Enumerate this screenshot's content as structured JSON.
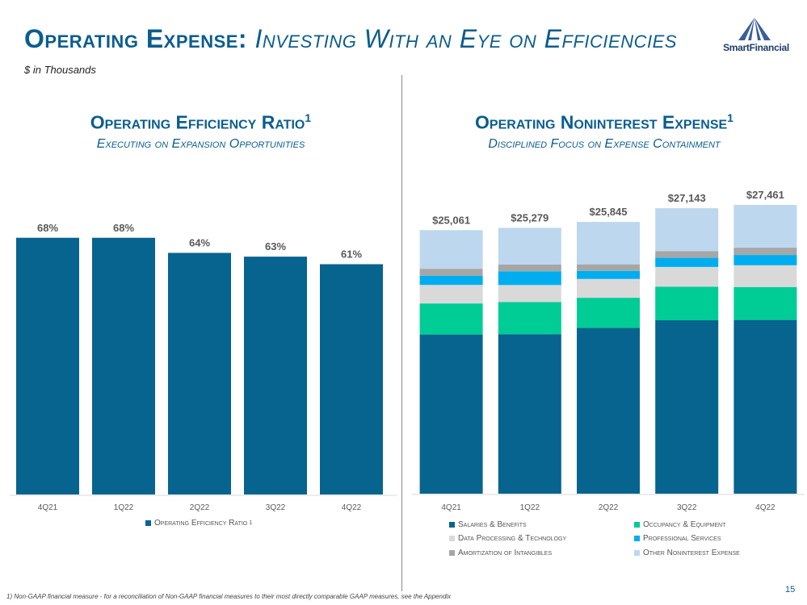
{
  "header": {
    "title_main": "Operating Expense:",
    "title_sub": "Investing With an Eye on Efficiencies",
    "units": "$ in Thousands",
    "logo_text": "SmartFinancial",
    "page_number": "15"
  },
  "left_panel": {
    "title": "Operating Efficiency Ratio",
    "title_sup": "1",
    "subtitle": "Executing on Expansion Opportunities"
  },
  "right_panel": {
    "title": "Operating Noninterest Expense",
    "title_sup": "1",
    "subtitle": "Disciplined Focus on Expense Containment"
  },
  "colors": {
    "accent": "#0a5d8f",
    "bar_primary": "#06648f",
    "salaries": "#06648f",
    "occupancy": "#00cc96",
    "data_processing": "#d9d9d9",
    "professional": "#00aeef",
    "amortization": "#a6a6a6",
    "other": "#bdd7ee"
  },
  "chart_data": [
    {
      "type": "bar",
      "title": "Operating Efficiency Ratio",
      "categories": [
        "4Q21",
        "1Q22",
        "2Q22",
        "3Q22",
        "4Q22"
      ],
      "values": [
        68,
        68,
        64,
        63,
        61
      ],
      "data_labels": [
        "68%",
        "68%",
        "64%",
        "63%",
        "61%"
      ],
      "series_name": "Operating Efficiency Ratio",
      "series_sup": "1",
      "ylim": [
        0,
        75
      ]
    },
    {
      "type": "bar",
      "stacked": true,
      "title": "Operating Noninterest Expense",
      "categories": [
        "4Q21",
        "1Q22",
        "2Q22",
        "3Q22",
        "4Q22"
      ],
      "totals": [
        25061,
        25279,
        25845,
        27143,
        27461
      ],
      "total_labels": [
        "$25,061",
        "$25,279",
        "$25,845",
        "$27,143",
        "$27,461"
      ],
      "ylim": [
        0,
        30000
      ],
      "series": [
        {
          "name": "Salaries & Benefits",
          "key": "salaries",
          "values": [
            15140,
            15170,
            15760,
            16490,
            16520
          ]
        },
        {
          "name": "Occupancy & Equipment",
          "key": "occupancy",
          "values": [
            2950,
            3050,
            2870,
            3200,
            3130
          ]
        },
        {
          "name": "Data Processing & Technology",
          "key": "data_processing",
          "values": [
            1760,
            1620,
            1790,
            1870,
            2070
          ]
        },
        {
          "name": "Professional Services",
          "key": "professional",
          "values": [
            880,
            1310,
            770,
            870,
            980
          ]
        },
        {
          "name": "Amortization of Intangibles",
          "key": "amortization",
          "values": [
            660,
            640,
            620,
            620,
            690
          ]
        },
        {
          "name": "Other Noninterest Expense",
          "key": "other",
          "values": [
            3671,
            3489,
            4035,
            4093,
            4071
          ]
        }
      ]
    }
  ],
  "footnote": "1) Non-GAAP financial measure - for a reconciliation of Non-GAAP financial measures to their most directly comparable GAAP measures, see the Appendix"
}
